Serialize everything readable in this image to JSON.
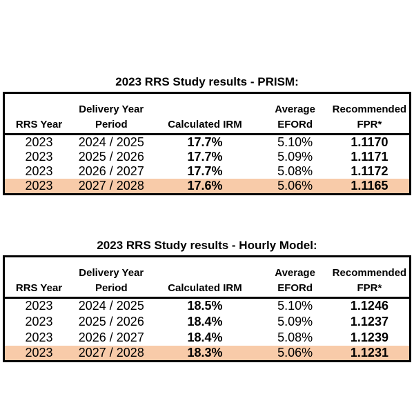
{
  "colors": {
    "background": "#FFFFFF",
    "border": "#000000",
    "text": "#000000",
    "highlight_row": "#F8CBA9"
  },
  "tables": [
    {
      "title": "2023 RRS Study results - PRISM:",
      "columns": [
        {
          "top": "",
          "bottom": "RRS Year"
        },
        {
          "top": "Delivery Year",
          "bottom": "Period"
        },
        {
          "top": "",
          "bottom": "Calculated IRM"
        },
        {
          "top": "Average",
          "bottom": "EFORd"
        },
        {
          "top": "Recommended",
          "bottom": "FPR*"
        }
      ],
      "rows": [
        {
          "rrs_year": "2023",
          "period": "2024 / 2025",
          "calculated_irm": "17.7%",
          "average_eford": "5.10%",
          "recommended_fpr": "1.1170",
          "highlighted": false
        },
        {
          "rrs_year": "2023",
          "period": "2025 / 2026",
          "calculated_irm": "17.7%",
          "average_eford": "5.09%",
          "recommended_fpr": "1.1171",
          "highlighted": false
        },
        {
          "rrs_year": "2023",
          "period": "2026 / 2027",
          "calculated_irm": "17.7%",
          "average_eford": "5.08%",
          "recommended_fpr": "1.1172",
          "highlighted": false
        },
        {
          "rrs_year": "2023",
          "period": "2027 / 2028",
          "calculated_irm": "17.6%",
          "average_eford": "5.06%",
          "recommended_fpr": "1.1165",
          "highlighted": true
        }
      ]
    },
    {
      "title": "2023 RRS Study results - Hourly Model:",
      "columns": [
        {
          "top": "",
          "bottom": "RRS Year"
        },
        {
          "top": "Delivery Year",
          "bottom": "Period"
        },
        {
          "top": "",
          "bottom": "Calculated IRM"
        },
        {
          "top": "Average",
          "bottom": "EFORd"
        },
        {
          "top": "Recommended",
          "bottom": "FPR*"
        }
      ],
      "rows": [
        {
          "rrs_year": "2023",
          "period": "2024 / 2025",
          "calculated_irm": "18.5%",
          "average_eford": "5.10%",
          "recommended_fpr": "1.1246",
          "highlighted": false
        },
        {
          "rrs_year": "2023",
          "period": "2025 / 2026",
          "calculated_irm": "18.4%",
          "average_eford": "5.09%",
          "recommended_fpr": "1.1237",
          "highlighted": false
        },
        {
          "rrs_year": "2023",
          "period": "2026 / 2027",
          "calculated_irm": "18.4%",
          "average_eford": "5.08%",
          "recommended_fpr": "1.1239",
          "highlighted": false
        },
        {
          "rrs_year": "2023",
          "period": "2027 / 2028",
          "calculated_irm": "18.3%",
          "average_eford": "5.06%",
          "recommended_fpr": "1.1231",
          "highlighted": true
        }
      ]
    }
  ]
}
